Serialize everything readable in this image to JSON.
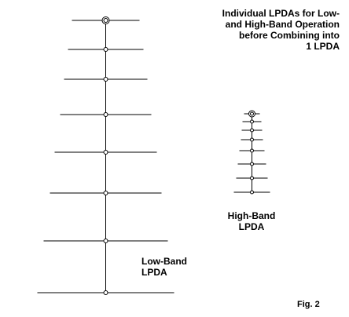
{
  "title": {
    "lines": [
      "Individual LPDAs for Low-",
      "and High-Band Operation",
      "before Combining into",
      "1 LPDA"
    ]
  },
  "high_band_label": {
    "line1": "High-Band",
    "line2": "LPDA"
  },
  "low_band_label": {
    "line1": "Low-Band",
    "line2": "LPDA"
  },
  "figure_label": "Fig. 2",
  "diagram": {
    "low_band_lpda": {
      "element_count": 8,
      "feed_marker": "double-circle at top"
    },
    "high_band_lpda": {
      "element_count": 8,
      "feed_marker": "double-circle at top"
    }
  },
  "colors": {
    "line": "#000000",
    "background": "#ffffff"
  }
}
